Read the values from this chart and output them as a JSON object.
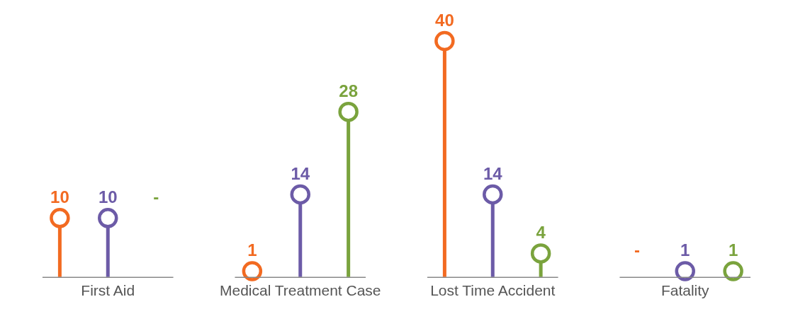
{
  "chart_data": {
    "type": "lollipop",
    "categories": [
      "First Aid",
      "Medical Treatment Case",
      "Lost Time Accident",
      "Fatality"
    ],
    "series": [
      {
        "color": "#f26a21",
        "values": [
          10,
          1,
          40,
          null
        ],
        "value_labels": [
          "10",
          "1",
          "40",
          "-"
        ]
      },
      {
        "color": "#6c5ba7",
        "values": [
          10,
          14,
          14,
          1
        ],
        "value_labels": [
          "10",
          "14",
          "14",
          "1"
        ]
      },
      {
        "color": "#7aa33d",
        "values": [
          null,
          28,
          4,
          1
        ],
        "value_labels": [
          "-",
          "28",
          "4",
          "1"
        ]
      }
    ],
    "marker": "circle",
    "grid": false,
    "legend": false
  }
}
